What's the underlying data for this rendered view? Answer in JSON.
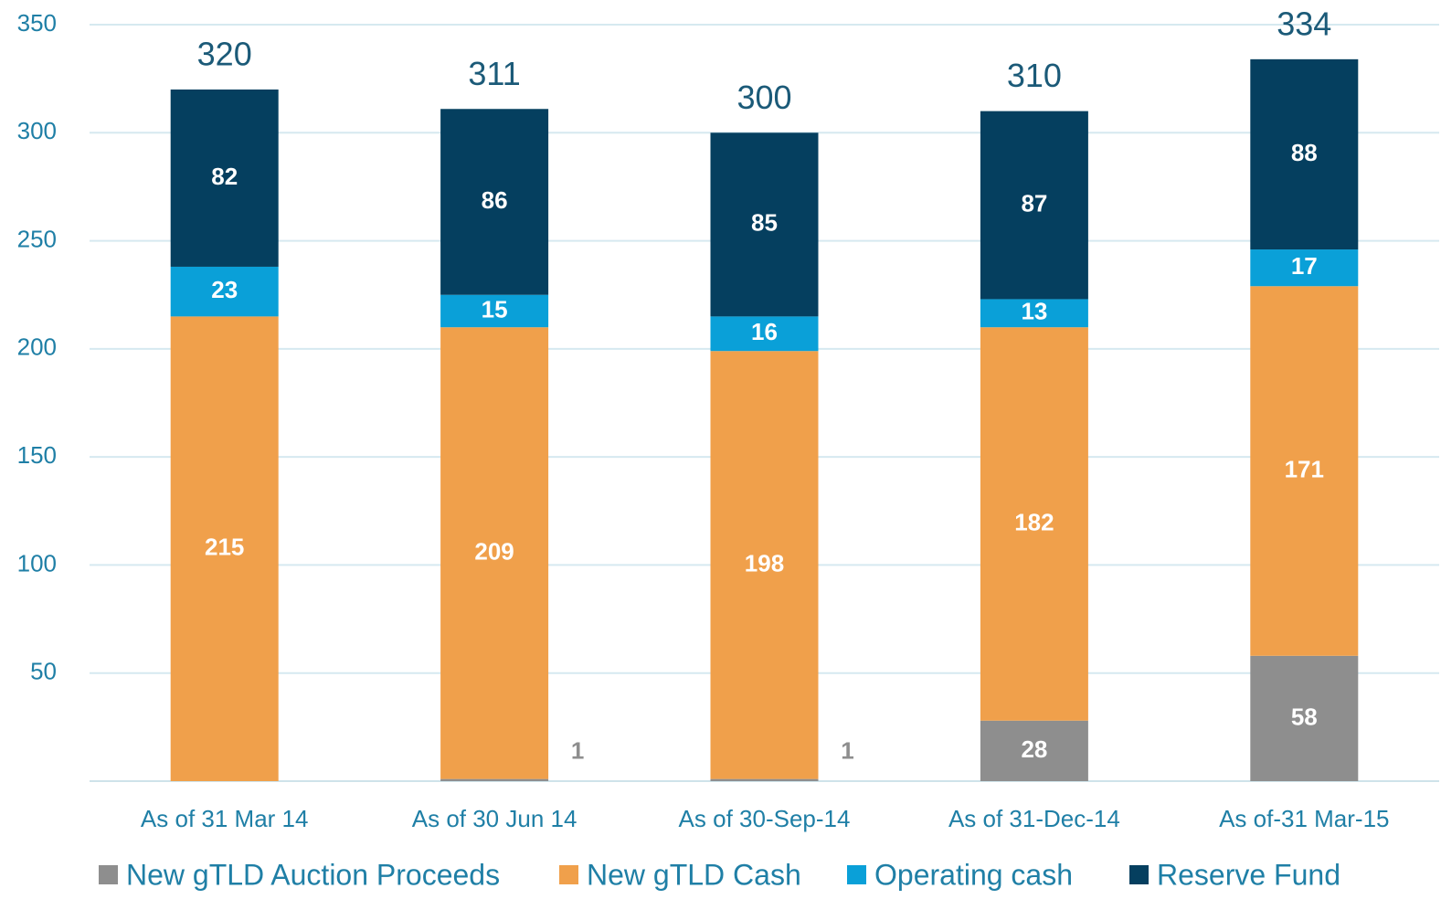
{
  "chart_data": {
    "type": "stacked_bar",
    "categories": [
      "As of 31 Mar 14",
      "As of 30 Jun 14",
      "As of 30-Sep-14",
      "As of 31-Dec-14",
      "As of-31 Mar-15"
    ],
    "series": [
      {
        "name": "New gTLD Auction Proceeds",
        "color": "#8e8e8e",
        "values": [
          null,
          1,
          1,
          28,
          58
        ]
      },
      {
        "name": "New gTLD Cash",
        "color": "#f0a04b",
        "values": [
          215,
          209,
          198,
          182,
          171
        ]
      },
      {
        "name": "Operating cash",
        "color": "#0aa0d8",
        "values": [
          23,
          15,
          16,
          13,
          17
        ]
      },
      {
        "name": "Reserve Fund",
        "color": "#053f5f",
        "values": [
          82,
          86,
          85,
          87,
          88
        ]
      }
    ],
    "totals": [
      320,
      311,
      300,
      310,
      334
    ],
    "ylim": [
      0,
      350
    ],
    "yticks": [
      50,
      100,
      150,
      200,
      250,
      300,
      350
    ],
    "grid": true,
    "legend": "bottom"
  }
}
